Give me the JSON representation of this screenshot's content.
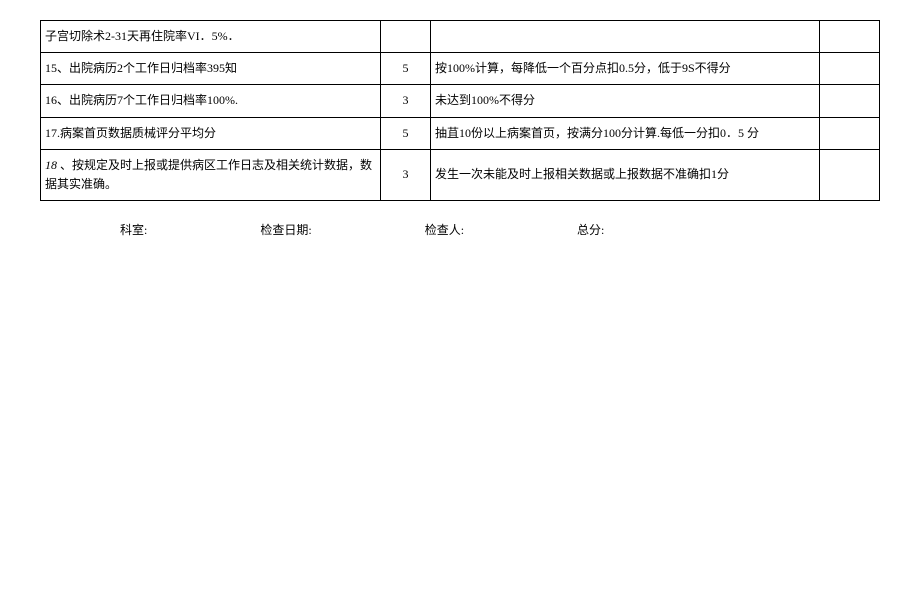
{
  "table": {
    "rows": [
      {
        "item": "子宫切除术2-31天再住院率VI．5%．",
        "score": "",
        "criteria": "",
        "blank": ""
      },
      {
        "item": "15、出院病历2个工作日归档率395知",
        "score": "5",
        "criteria": "按100%计算，每降低一个百分点扣0.5分，低于9S不得分",
        "blank": ""
      },
      {
        "item": "16、出院病历7个工作日归档率100%.",
        "score": "3",
        "criteria": "未达到100%不得分",
        "blank": ""
      },
      {
        "item": "17.病案首页数据质械评分平均分",
        "score": "5",
        "criteria": "抽苴10份以上病案首页，按满分100分计算.每低一分扣0．5 分",
        "blank": ""
      },
      {
        "item": "18 、按规定及时上报或提供病区工作日志及相关统计数据，数据其实准确。",
        "score": "3",
        "criteria": "发生一次未能及时上报相关数据或上报数据不准确扣1分",
        "blank": ""
      }
    ]
  },
  "footer": {
    "label1": "科室:",
    "label2": "检查日期:",
    "label3": "检查人:",
    "label4": "总分:"
  },
  "colors": {
    "border": "#000000",
    "text": "#000000",
    "background": "#ffffff"
  },
  "typography": {
    "font_family": "SimSun",
    "cell_fontsize": 12,
    "footer_fontsize": 12
  },
  "layout": {
    "col1_width": 340,
    "col2_width": 50,
    "col4_width": 60,
    "col2_align": "center"
  }
}
